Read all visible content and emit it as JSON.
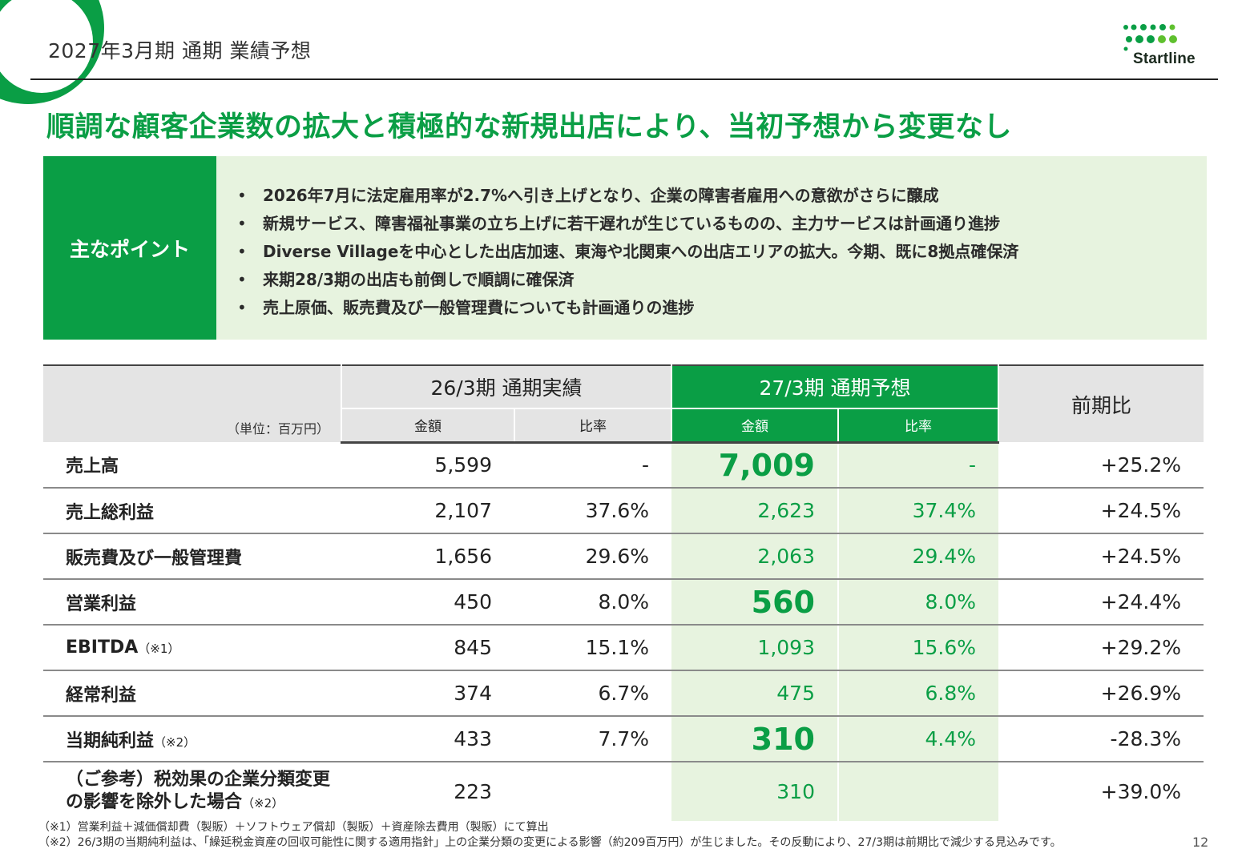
{
  "header": {
    "title": "2027年3月期 通期 業績予想",
    "logo_text": "Startline"
  },
  "headline": "順調な顧客企業数の拡大と積極的な新規出店により、当初予想から変更なし",
  "points": {
    "label": "主なポイント",
    "bullet": "•",
    "items": [
      "2026年7月に法定雇用率が2.7%へ引き上げとなり、企業の障害者雇用への意欲がさらに醸成",
      "新規サービス、障害福祉事業の立ち上げに若干遅れが生じているものの、主力サービスは計画通り進捗",
      "Diverse Villageを中心とした出店加速、東海や北関東への出店エリアの拡大。今期、既に8拠点確保済",
      "来期28/3期の出店も前倒しで順調に確保済",
      "売上原価、販売費及び一般管理費についても計画通りの進捗"
    ]
  },
  "table": {
    "unit": "（単位：百万円）",
    "col_prev": "26/3期 通期実績",
    "col_next": "27/3期 通期予想",
    "col_change": "前期比",
    "sub_amount": "金額",
    "sub_ratio": "比率",
    "rows": [
      {
        "name": "売上高",
        "note": "",
        "prev_amount": "5,599",
        "prev_ratio": "-",
        "next_amount": "7,009",
        "next_ratio": "-",
        "change": "+25.2%"
      },
      {
        "name": "売上総利益",
        "note": "",
        "prev_amount": "2,107",
        "prev_ratio": "37.6%",
        "next_amount": "2,623",
        "next_ratio": "37.4%",
        "change": "+24.5%"
      },
      {
        "name": "販売費及び一般管理費",
        "note": "",
        "prev_amount": "1,656",
        "prev_ratio": "29.6%",
        "next_amount": "2,063",
        "next_ratio": "29.4%",
        "change": "+24.5%"
      },
      {
        "name": "営業利益",
        "note": "",
        "prev_amount": "450",
        "prev_ratio": "8.0%",
        "next_amount": "560",
        "next_ratio": "8.0%",
        "change": "+24.4%"
      },
      {
        "name": "EBITDA",
        "note": "（※1）",
        "prev_amount": "845",
        "prev_ratio": "15.1%",
        "next_amount": "1,093",
        "next_ratio": "15.6%",
        "change": "+29.2%"
      },
      {
        "name": "経常利益",
        "note": "",
        "prev_amount": "374",
        "prev_ratio": "6.7%",
        "next_amount": "475",
        "next_ratio": "6.8%",
        "change": "+26.9%"
      },
      {
        "name": "当期純利益",
        "note": "（※2）",
        "prev_amount": "433",
        "prev_ratio": "7.7%",
        "next_amount": "310",
        "next_ratio": "4.4%",
        "change": "-28.3%"
      },
      {
        "name_line1": "（ご参考）税効果の企業分類変更",
        "name_line2": "の影響を除外した場合",
        "note": "（※2）",
        "prev_amount": "223",
        "prev_ratio": "",
        "next_amount": "310",
        "next_ratio": "",
        "change": "+39.0%"
      }
    ]
  },
  "footnotes": [
    "（※1）営業利益＋減価償却費（製販）＋ソフトウェア償却（製販）＋資産除去費用（製販）にて算出",
    "（※2）26/3期の当期純利益は、「繰延税金資産の回収可能性に関する適用指針」上の企業分類の変更による影響（約209百万円）が生じました。その反動により、27/3期は前期比で減少する見込みです。"
  ],
  "page_number": "12",
  "colors": {
    "brand_green": "#0a9e45",
    "light_green": "#e7f3df",
    "header_gray": "#e4e4e4"
  }
}
